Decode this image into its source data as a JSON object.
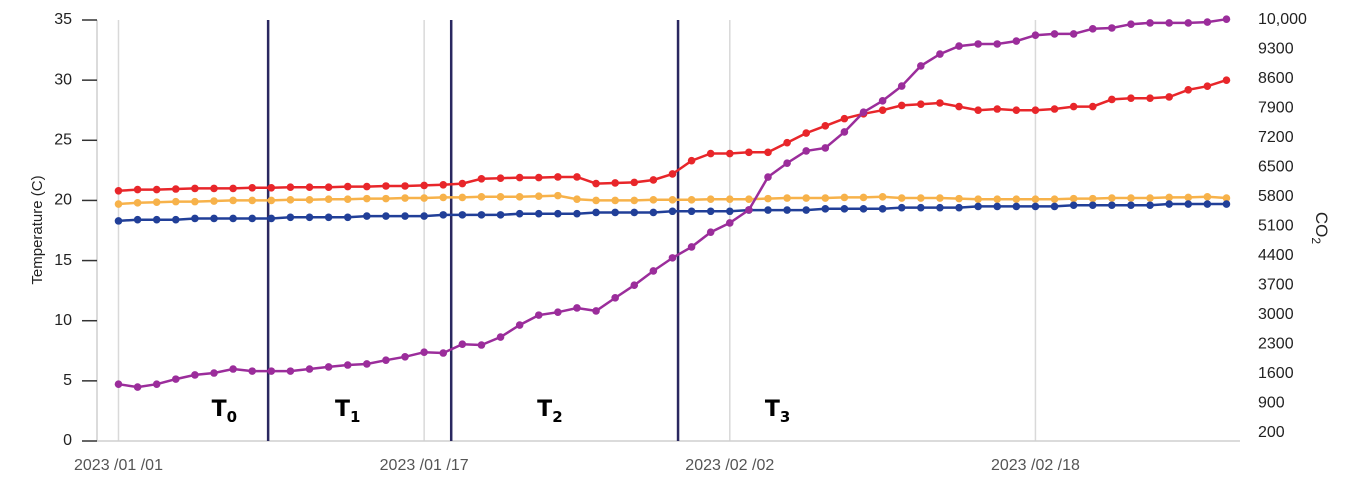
{
  "chart_data": {
    "type": "line",
    "ylabel": "Temperature (C)",
    "y2label": {
      "text": "CO",
      "sub": "2"
    },
    "x": [
      "2023-01-01",
      "2023-01-02",
      "2023-01-03",
      "2023-01-04",
      "2023-01-05",
      "2023-01-06",
      "2023-01-07",
      "2023-01-08",
      "2023-01-09",
      "2023-01-10",
      "2023-01-11",
      "2023-01-12",
      "2023-01-13",
      "2023-01-14",
      "2023-01-15",
      "2023-01-16",
      "2023-01-17",
      "2023-01-18",
      "2023-01-19",
      "2023-01-20",
      "2023-01-21",
      "2023-01-22",
      "2023-01-23",
      "2023-01-24",
      "2023-01-25",
      "2023-01-26",
      "2023-01-27",
      "2023-01-28",
      "2023-01-29",
      "2023-01-30",
      "2023-01-31",
      "2023-02-01",
      "2023-02-02",
      "2023-02-03",
      "2023-02-04",
      "2023-02-05",
      "2023-02-06",
      "2023-02-07",
      "2023-02-08",
      "2023-02-09",
      "2023-02-10",
      "2023-02-11",
      "2023-02-12",
      "2023-02-13",
      "2023-02-14",
      "2023-02-15",
      "2023-02-16",
      "2023-02-17",
      "2023-02-18",
      "2023-02-19",
      "2023-02-20",
      "2023-02-21",
      "2023-02-22",
      "2023-02-23",
      "2023-02-24",
      "2023-02-25",
      "2023-02-26",
      "2023-02-27",
      "2023-02-28"
    ],
    "xlim": [
      "2022-12-30T21:00",
      "2023-02-28T17:00"
    ],
    "xticks": [
      {
        "value": "2023-01-01",
        "label": "2023 /01 /01"
      },
      {
        "value": "2023-01-17",
        "label": "2023 /01 /17"
      },
      {
        "value": "2023-02-02",
        "label": "2023 /02 /02"
      },
      {
        "value": "2023-02-18",
        "label": "2023 /02 /18"
      }
    ],
    "ylim": [
      0,
      35
    ],
    "yticks": [
      0,
      5,
      10,
      15,
      20,
      25,
      30,
      35
    ],
    "y2lim": [
      0,
      10000
    ],
    "y2ticks": [
      200,
      900,
      1600,
      2300,
      3000,
      3700,
      4400,
      5100,
      5800,
      6500,
      7200,
      7900,
      8600,
      9300,
      {
        "value": 10000,
        "label": "10,000"
      }
    ],
    "grid": "x",
    "series": [
      {
        "color": "#f7b24a",
        "values": [
          19.7,
          19.8,
          19.85,
          19.9,
          19.9,
          19.95,
          20.0,
          20.0,
          20.0,
          20.05,
          20.05,
          20.1,
          20.1,
          20.15,
          20.15,
          20.2,
          20.2,
          20.25,
          20.25,
          20.3,
          20.3,
          20.3,
          20.35,
          20.4,
          20.1,
          20.0,
          20.0,
          20.0,
          20.05,
          20.05,
          20.05,
          20.1,
          20.1,
          20.1,
          20.15,
          20.2,
          20.2,
          20.2,
          20.25,
          20.25,
          20.3,
          20.2,
          20.2,
          20.2,
          20.15,
          20.1,
          20.1,
          20.1,
          20.1,
          20.1,
          20.15,
          20.15,
          20.2,
          20.2,
          20.2,
          20.25,
          20.25,
          20.3,
          20.2
        ]
      },
      {
        "color": "#213f98",
        "values": [
          18.3,
          18.4,
          18.4,
          18.4,
          18.5,
          18.5,
          18.5,
          18.5,
          18.5,
          18.6,
          18.6,
          18.6,
          18.6,
          18.7,
          18.7,
          18.7,
          18.7,
          18.8,
          18.8,
          18.8,
          18.8,
          18.9,
          18.9,
          18.9,
          18.9,
          19.0,
          19.0,
          19.0,
          19.0,
          19.1,
          19.1,
          19.1,
          19.1,
          19.2,
          19.2,
          19.2,
          19.2,
          19.3,
          19.3,
          19.3,
          19.3,
          19.4,
          19.4,
          19.4,
          19.4,
          19.5,
          19.5,
          19.5,
          19.5,
          19.5,
          19.6,
          19.6,
          19.6,
          19.6,
          19.6,
          19.7,
          19.7,
          19.7,
          19.7
        ]
      },
      {
        "color": "#e8262a",
        "values": [
          20.8,
          20.9,
          20.9,
          20.95,
          21.0,
          21.0,
          21.0,
          21.05,
          21.05,
          21.1,
          21.1,
          21.1,
          21.15,
          21.15,
          21.2,
          21.2,
          21.25,
          21.3,
          21.4,
          21.8,
          21.85,
          21.9,
          21.9,
          21.95,
          21.95,
          21.4,
          21.45,
          21.5,
          21.7,
          22.2,
          23.3,
          23.9,
          23.9,
          24.0,
          24.0,
          24.8,
          25.6,
          26.2,
          26.8,
          27.2,
          27.5,
          27.9,
          28.0,
          28.1,
          27.8,
          27.5,
          27.6,
          27.5,
          27.5,
          27.6,
          27.8,
          27.8,
          28.4,
          28.5,
          28.5,
          28.6,
          29.2,
          29.5,
          30.0
        ]
      },
      {
        "color": "#9b2d9b",
        "axis": "y2",
        "values": [
          1350,
          1280,
          1350,
          1470,
          1570,
          1615,
          1710,
          1660,
          1660,
          1660,
          1710,
          1760,
          1805,
          1830,
          1920,
          2000,
          2110,
          2090,
          2300,
          2280,
          2470,
          2755,
          2990,
          3060,
          3160,
          3090,
          3400,
          3700,
          4040,
          4350,
          4610,
          4960,
          5180,
          5490,
          6270,
          6600,
          6890,
          6960,
          7340,
          7810,
          8080,
          8430,
          8910,
          9190,
          9380,
          9430,
          9430,
          9500,
          9640,
          9670,
          9670,
          9790,
          9810,
          9900,
          9930,
          9930,
          9930,
          9950,
          10020
        ]
      }
    ],
    "boundaries": {
      "color": "#2a2860",
      "x": [
        "2023-01-08T20:00",
        "2023-01-18T10:00",
        "2023-01-30T07:00"
      ]
    },
    "annotations": [
      {
        "text": "T",
        "sub": "0",
        "x": "2023-01-06T13:00"
      },
      {
        "text": "T",
        "sub": "1",
        "x": "2023-01-13T00:00"
      },
      {
        "text": "T",
        "sub": "2",
        "x": "2023-01-23T14:00"
      },
      {
        "text": "T",
        "sub": "3",
        "x": "2023-02-04T12:00"
      }
    ]
  }
}
